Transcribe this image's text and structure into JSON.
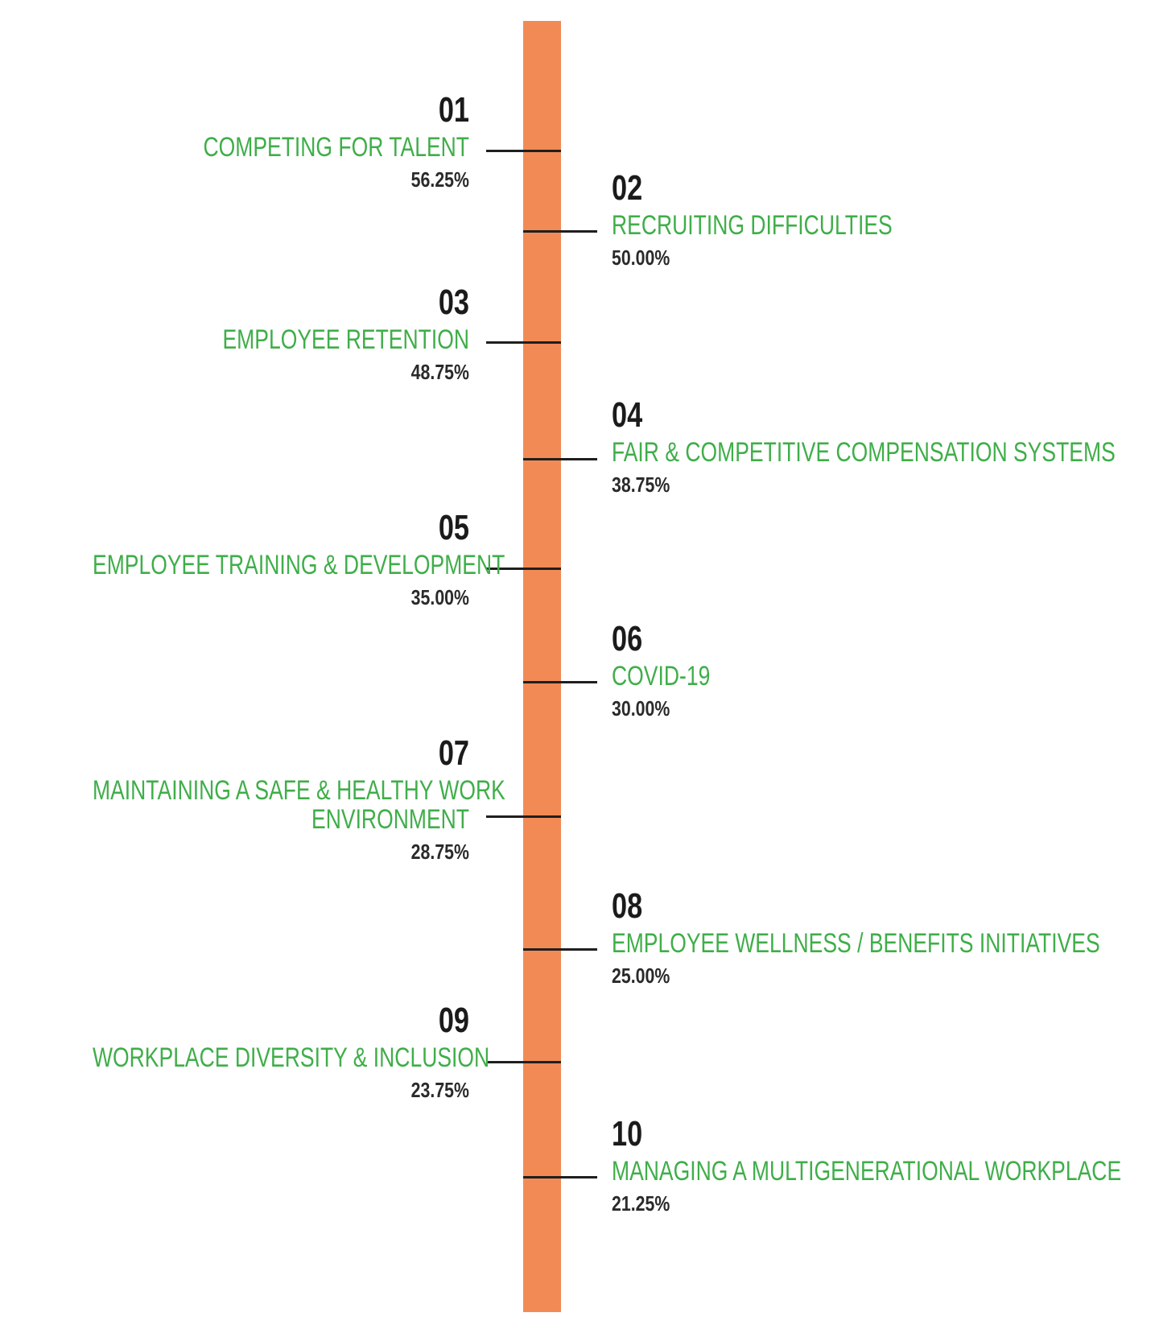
{
  "items": [
    {
      "rank": "01",
      "label_lines": [
        "COMPETING FOR TALENT"
      ],
      "percent": "56.25%"
    },
    {
      "rank": "02",
      "label_lines": [
        "RECRUITING DIFFICULTIES"
      ],
      "percent": "50.00%"
    },
    {
      "rank": "03",
      "label_lines": [
        "EMPLOYEE RETENTION"
      ],
      "percent": "48.75%"
    },
    {
      "rank": "04",
      "label_lines": [
        "FAIR & COMPETITIVE COMPENSATION SYSTEMS"
      ],
      "percent": "38.75%"
    },
    {
      "rank": "05",
      "label_lines": [
        "EMPLOYEE TRAINING & DEVELOPMENT"
      ],
      "percent": "35.00%"
    },
    {
      "rank": "06",
      "label_lines": [
        "COVID-19"
      ],
      "percent": "30.00%"
    },
    {
      "rank": "07",
      "label_lines": [
        "MAINTAINING A SAFE & HEALTHY WORK",
        "ENVIRONMENT"
      ],
      "percent": "28.75%"
    },
    {
      "rank": "08",
      "label_lines": [
        "EMPLOYEE WELLNESS / BENEFITS INITIATIVES"
      ],
      "percent": "25.00%"
    },
    {
      "rank": "09",
      "label_lines": [
        "WORKPLACE DIVERSITY & INCLUSION"
      ],
      "percent": "23.75%"
    },
    {
      "rank": "10",
      "label_lines": [
        "MANAGING A MULTIGENERATIONAL WORKPLACE"
      ],
      "percent": "21.25%"
    }
  ],
  "colors": {
    "spine": "#f28a55",
    "label": "#3fae49",
    "number": "#1b1b1b",
    "tick": "#1f1f1f"
  }
}
